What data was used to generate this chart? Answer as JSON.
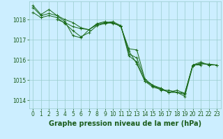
{
  "background_color": "#cceeff",
  "grid_color": "#99cccc",
  "line_color": "#1a6b1a",
  "marker_color": "#1a6b1a",
  "xlabel": "Graphe pression niveau de la mer (hPa)",
  "xlabel_fontsize": 7.0,
  "xlabel_color": "#1a5c1a",
  "tick_label_color": "#1a5c1a",
  "tick_fontsize": 5.5,
  "xlim": [
    -0.5,
    23.5
  ],
  "ylim": [
    1013.6,
    1018.9
  ],
  "yticks": [
    1014,
    1015,
    1016,
    1017,
    1018
  ],
  "xticks": [
    0,
    1,
    2,
    3,
    4,
    5,
    6,
    7,
    8,
    9,
    10,
    11,
    12,
    13,
    14,
    15,
    16,
    17,
    18,
    19,
    20,
    21,
    22,
    23
  ],
  "series": [
    {
      "x": [
        0,
        1,
        2,
        3,
        4,
        5,
        6,
        7,
        8,
        9,
        10,
        11,
        12,
        13,
        14,
        15,
        16,
        17,
        18,
        19,
        20,
        21
      ],
      "y": [
        1018.6,
        1018.2,
        1018.3,
        1018.2,
        1017.9,
        1017.2,
        1017.1,
        1017.5,
        1017.75,
        1017.85,
        1017.85,
        1017.65,
        1016.55,
        1016.5,
        1015.05,
        1014.7,
        1014.6,
        1014.4,
        1014.5,
        1014.35,
        1015.75,
        1015.75
      ]
    },
    {
      "x": [
        0,
        1,
        2,
        3,
        4,
        5,
        6,
        7,
        8,
        9,
        10,
        11,
        12,
        13,
        14,
        15,
        16,
        17,
        18,
        19,
        20,
        21,
        22,
        23
      ],
      "y": [
        1018.35,
        1018.1,
        1018.2,
        1018.1,
        1017.8,
        1017.45,
        1017.15,
        1017.35,
        1017.7,
        1017.8,
        1017.85,
        1017.65,
        1016.45,
        1015.8,
        1014.95,
        1014.65,
        1014.55,
        1014.4,
        1014.4,
        1014.3,
        1015.75,
        1015.8,
        1015.8,
        1015.75
      ]
    },
    {
      "x": [
        0,
        1,
        2,
        3,
        4,
        5,
        6,
        7,
        8,
        9,
        10,
        11,
        12,
        13,
        14,
        15,
        16,
        17,
        18,
        19,
        20,
        21,
        22,
        23
      ],
      "y": [
        1018.7,
        1018.25,
        1018.5,
        1018.2,
        1018.0,
        1017.85,
        1017.6,
        1017.5,
        1017.8,
        1017.9,
        1017.8,
        1017.7,
        1016.3,
        1016.1,
        1015.05,
        1014.75,
        1014.6,
        1014.4,
        1014.4,
        1014.35,
        1015.75,
        1015.9,
        1015.75,
        1015.75
      ]
    },
    {
      "x": [
        3,
        4,
        5,
        6,
        7,
        8,
        9,
        10,
        11,
        12,
        13,
        14,
        15,
        16,
        17,
        18,
        19,
        20,
        21,
        22,
        23
      ],
      "y": [
        1018.0,
        1017.85,
        1017.65,
        1017.55,
        1017.5,
        1017.75,
        1017.85,
        1017.9,
        1017.7,
        1016.2,
        1015.9,
        1014.95,
        1014.75,
        1014.5,
        1014.5,
        1014.4,
        1014.2,
        1015.7,
        1015.85,
        1015.75,
        1015.75
      ]
    }
  ]
}
